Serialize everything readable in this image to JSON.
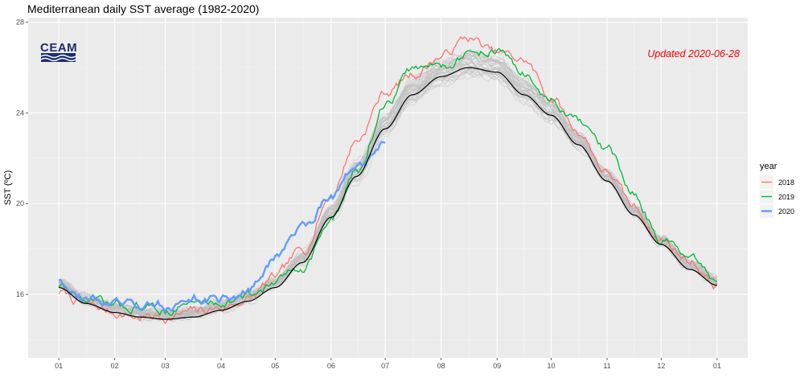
{
  "chart_data": {
    "type": "line",
    "title": "Mediterranean daily SST average (1982-2020)",
    "xlabel": "",
    "ylabel": "SST (ºC)",
    "x_ticks": [
      "01",
      "02",
      "03",
      "04",
      "05",
      "06",
      "07",
      "08",
      "09",
      "10",
      "11",
      "12",
      "01"
    ],
    "x_tick_days": [
      0,
      31,
      59,
      90,
      120,
      151,
      181,
      212,
      243,
      273,
      304,
      334,
      365
    ],
    "xlim": [
      -17,
      382
    ],
    "y_ticks": [
      16,
      20,
      24,
      28
    ],
    "ylim": [
      13.2,
      28.2
    ],
    "grid": true,
    "legend": {
      "title": "year",
      "position": "right"
    },
    "annotation": {
      "text": "Updated 2020-06-28",
      "color": "#ee0000"
    },
    "logo": {
      "text": "CEAM"
    },
    "climatology": {
      "name": "",
      "color": "#000000",
      "x": [
        0,
        15,
        31,
        45,
        59,
        75,
        90,
        105,
        120,
        135,
        151,
        165,
        181,
        196,
        212,
        227,
        243,
        258,
        273,
        288,
        304,
        319,
        334,
        350,
        365
      ],
      "y": [
        16.3,
        15.6,
        15.2,
        15.0,
        14.9,
        15.0,
        15.3,
        15.7,
        16.3,
        17.4,
        19.4,
        21.2,
        23.3,
        24.8,
        25.6,
        26.0,
        25.8,
        24.8,
        23.9,
        22.6,
        21.0,
        19.5,
        18.2,
        17.1,
        16.4
      ]
    },
    "series": [
      {
        "name": "2018",
        "color": "#f8766d",
        "x": [
          0,
          15,
          31,
          45,
          59,
          75,
          90,
          105,
          120,
          135,
          151,
          165,
          181,
          196,
          212,
          227,
          243,
          258,
          273,
          288,
          304,
          319,
          334,
          350,
          365
        ],
        "y": [
          16.1,
          15.5,
          15.2,
          15.0,
          15.0,
          15.2,
          15.4,
          15.8,
          16.7,
          17.9,
          20.4,
          22.8,
          24.9,
          25.7,
          26.5,
          27.3,
          26.6,
          26.3,
          24.7,
          23.2,
          21.4,
          19.8,
          18.4,
          17.5,
          16.4
        ]
      },
      {
        "name": "2019",
        "color": "#00ba38",
        "x": [
          0,
          15,
          31,
          45,
          59,
          75,
          90,
          105,
          120,
          135,
          151,
          165,
          181,
          196,
          212,
          227,
          243,
          258,
          273,
          288,
          304,
          319,
          334,
          350,
          365
        ],
        "y": [
          16.4,
          15.7,
          15.4,
          15.5,
          15.3,
          15.6,
          15.7,
          15.9,
          16.5,
          17.3,
          19.2,
          21.4,
          24.3,
          25.9,
          26.1,
          26.6,
          26.8,
          25.7,
          24.5,
          23.5,
          22.3,
          20.4,
          18.5,
          17.4,
          16.5
        ]
      },
      {
        "name": "2020",
        "color": "#619cff",
        "x": [
          0,
          15,
          31,
          45,
          59,
          75,
          90,
          105,
          120,
          135,
          151,
          165,
          181
        ],
        "y": [
          16.7,
          15.8,
          15.6,
          15.4,
          15.5,
          15.8,
          15.8,
          16.1,
          17.6,
          19.0,
          20.4,
          21.6,
          22.6
        ]
      }
    ]
  }
}
